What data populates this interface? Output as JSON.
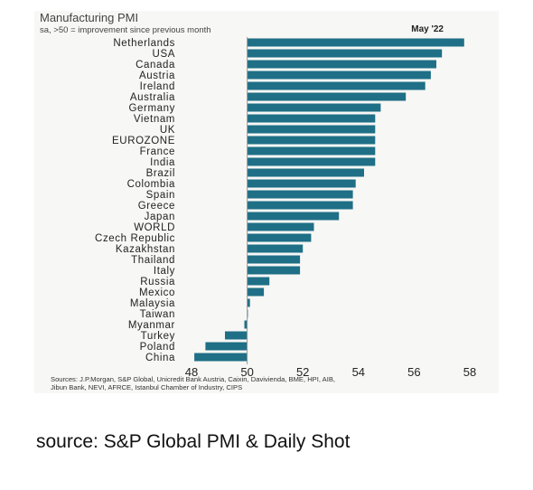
{
  "chart_data": {
    "type": "bar",
    "orientation": "horizontal",
    "title": "Manufacturing PMI",
    "subtitle": "sa, >50 = improvement since previous month",
    "period_label": "May '22",
    "baseline": 50,
    "xlim": [
      48,
      58
    ],
    "xticks": [
      "48",
      "50",
      "52",
      "54",
      "56",
      "58"
    ],
    "categories": [
      "Netherlands",
      "USA",
      "Canada",
      "Austria",
      "Ireland",
      "Australia",
      "Germany",
      "Vietnam",
      "UK",
      "EUROZONE",
      "France",
      "India",
      "Brazil",
      "Colombia",
      "Spain",
      "Greece",
      "Japan",
      "WORLD",
      "Czech Republic",
      "Kazakhstan",
      "Thailand",
      "Italy",
      "Russia",
      "Mexico",
      "Malaysia",
      "Taiwan",
      "Myanmar",
      "Turkey",
      "Poland",
      "China"
    ],
    "values": [
      57.8,
      57.0,
      56.8,
      56.6,
      56.4,
      55.7,
      54.8,
      54.6,
      54.6,
      54.6,
      54.6,
      54.6,
      54.2,
      53.9,
      53.8,
      53.8,
      53.3,
      52.4,
      52.3,
      52.0,
      51.9,
      51.9,
      50.8,
      50.6,
      50.1,
      50.0,
      49.9,
      49.2,
      48.5,
      48.1
    ],
    "bar_color": "#1f6f86",
    "grid": false,
    "sources": "Sources: J.P.Morgan, S&P Global, Unicredit Bank Austria, Caixin, Davivienda, BME, HPI, AIB, Jibun Bank, NEVI, AFRCE, Istanbul Chamber of Industry, CIPS"
  },
  "caption": "source: S&P Global PMI & Daily Shot"
}
